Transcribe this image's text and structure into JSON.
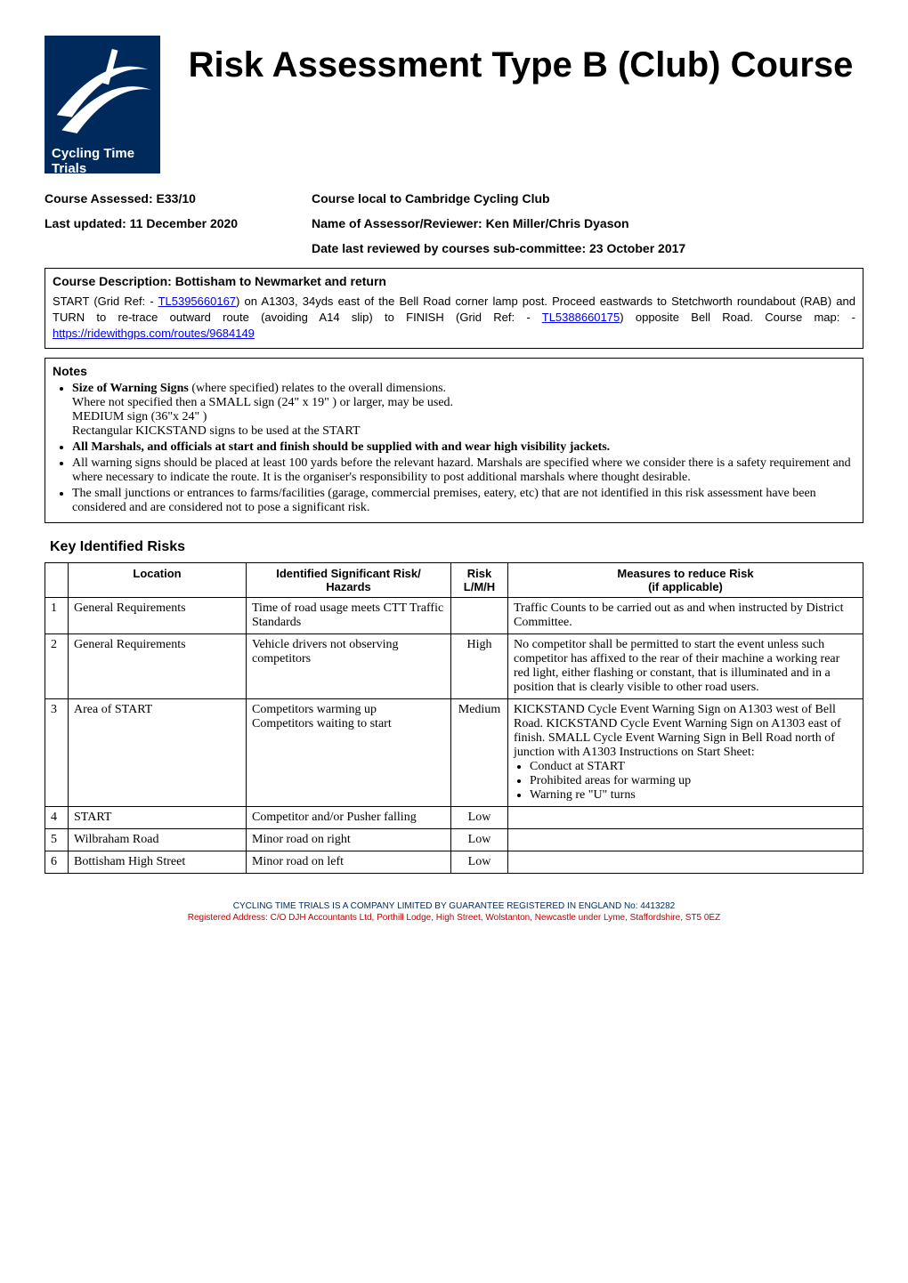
{
  "logo": {
    "brand_text": "Cycling Time Trials",
    "bg_color": "#002a5c",
    "swoosh_color": "#ffffff"
  },
  "title": "Risk Assessment Type B (Club) Course",
  "meta": {
    "course_assessed_label": "Course Assessed: E33/10",
    "course_local_label": "Course local to Cambridge Cycling Club",
    "last_updated_label": "Last updated: 11 December 2020",
    "assessor_label": "Name of Assessor/Reviewer: Ken Miller/Chris Dyason",
    "date_reviewed_label": "Date last reviewed by courses sub-committee: 23 October 2017"
  },
  "course_description": {
    "heading": "Course Description: Bottisham to Newmarket and return",
    "pre1": "START (Grid Ref: - ",
    "link1": "TL5395660167",
    "mid1": ") on A1303, 34yds east of the Bell Road corner lamp post. Proceed eastwards to Stetchworth roundabout (RAB) and TURN to re-trace outward route (avoiding A14 slip) to FINISH (Grid Ref: - ",
    "link2": "TL5388660175",
    "mid2": ") opposite Bell Road. Course map: -  ",
    "link3": "https://ridewithgps.com/routes/9684149"
  },
  "notes": {
    "heading": "Notes",
    "items": [
      {
        "lead": "Size of Warning Signs",
        "rest": " (where specified) relates to the overall dimensions.",
        "sublines": [
          "Where not specified then a SMALL sign (24\" x 19\" ) or larger, may be used.",
          "MEDIUM sign (36\"x 24\" )",
          "Rectangular KICKSTAND signs to be used at the START"
        ],
        "bold_all": false
      },
      {
        "lead": "All Marshals, and officials at start and finish should be supplied with and wear high visibility jackets.",
        "rest": "",
        "sublines": [],
        "bold_all": true
      },
      {
        "lead": "",
        "rest": "All warning signs should be placed at least 100 yards before the relevant hazard. Marshals are specified where we consider there is a safety requirement and where necessary to indicate the route. It is the organiser's responsibility to post additional marshals where thought desirable.",
        "sublines": [],
        "bold_all": false
      },
      {
        "lead": "",
        "rest": "The small junctions or entrances to farms/facilities (garage, commercial premises, eatery, etc) that are not identified in this risk assessment have been considered and are considered not to pose a significant risk.",
        "sublines": [],
        "bold_all": false
      }
    ]
  },
  "risks": {
    "heading": "Key Identified Risks",
    "columns": [
      "",
      "Location",
      "Identified Significant Risk/ Hazards",
      "Risk L/M/H",
      "Measures to reduce Risk (if applicable)"
    ],
    "col_sub": {
      "c2": "Identified Significant Risk/",
      "c2b": "Hazards",
      "c3": "Risk",
      "c3b": "L/M/H",
      "c4": "Measures to reduce Risk",
      "c4b": "(if applicable)"
    },
    "rows": [
      {
        "n": "1",
        "location": "General Requirements",
        "hazard": "Time of road usage meets CTT Traffic Standards",
        "level": "",
        "measures_text": "Traffic Counts to be carried out as and when instructed by District Committee.",
        "measures_bullets": []
      },
      {
        "n": "2",
        "location": "General Requirements",
        "hazard": "Vehicle drivers not observing competitors",
        "level": "High",
        "measures_text": "No competitor shall be permitted to start the event unless such competitor has affixed to the rear of their machine a working rear red light, either flashing or constant, that is illuminated and in a position that is clearly visible to other road users.",
        "measures_bullets": []
      },
      {
        "n": "3",
        "location": "Area of START",
        "hazard": "Competitors warming up\nCompetitors waiting to start",
        "level": "Medium",
        "measures_text": "KICKSTAND Cycle Event Warning Sign on A1303 west of Bell Road. KICKSTAND Cycle Event Warning Sign on A1303 east of finish. SMALL Cycle Event Warning Sign in Bell Road north of junction with A1303 Instructions on Start Sheet:",
        "measures_bullets": [
          "Conduct at START",
          "Prohibited areas for warming up",
          "Warning re \"U\" turns"
        ]
      },
      {
        "n": "4",
        "location": "START",
        "hazard": "Competitor and/or Pusher falling",
        "level": "Low",
        "measures_text": "",
        "measures_bullets": []
      },
      {
        "n": "5",
        "location": "Wilbraham Road",
        "hazard": "Minor road on right",
        "level": "Low",
        "measures_text": "",
        "measures_bullets": []
      },
      {
        "n": "6",
        "location": "Bottisham High Street",
        "hazard": "Minor road on left",
        "level": "Low",
        "measures_text": "",
        "measures_bullets": []
      }
    ]
  },
  "footer": {
    "line1": "CYCLING TIME TRIALS IS A COMPANY LIMITED BY GUARANTEE REGISTERED IN ENGLAND No: 4413282",
    "line2": "Registered Address: C/O DJH Accountants Ltd, Porthill Lodge, High Street, Wolstanton, Newcastle under Lyme, Staffordshire, ST5 0EZ"
  }
}
